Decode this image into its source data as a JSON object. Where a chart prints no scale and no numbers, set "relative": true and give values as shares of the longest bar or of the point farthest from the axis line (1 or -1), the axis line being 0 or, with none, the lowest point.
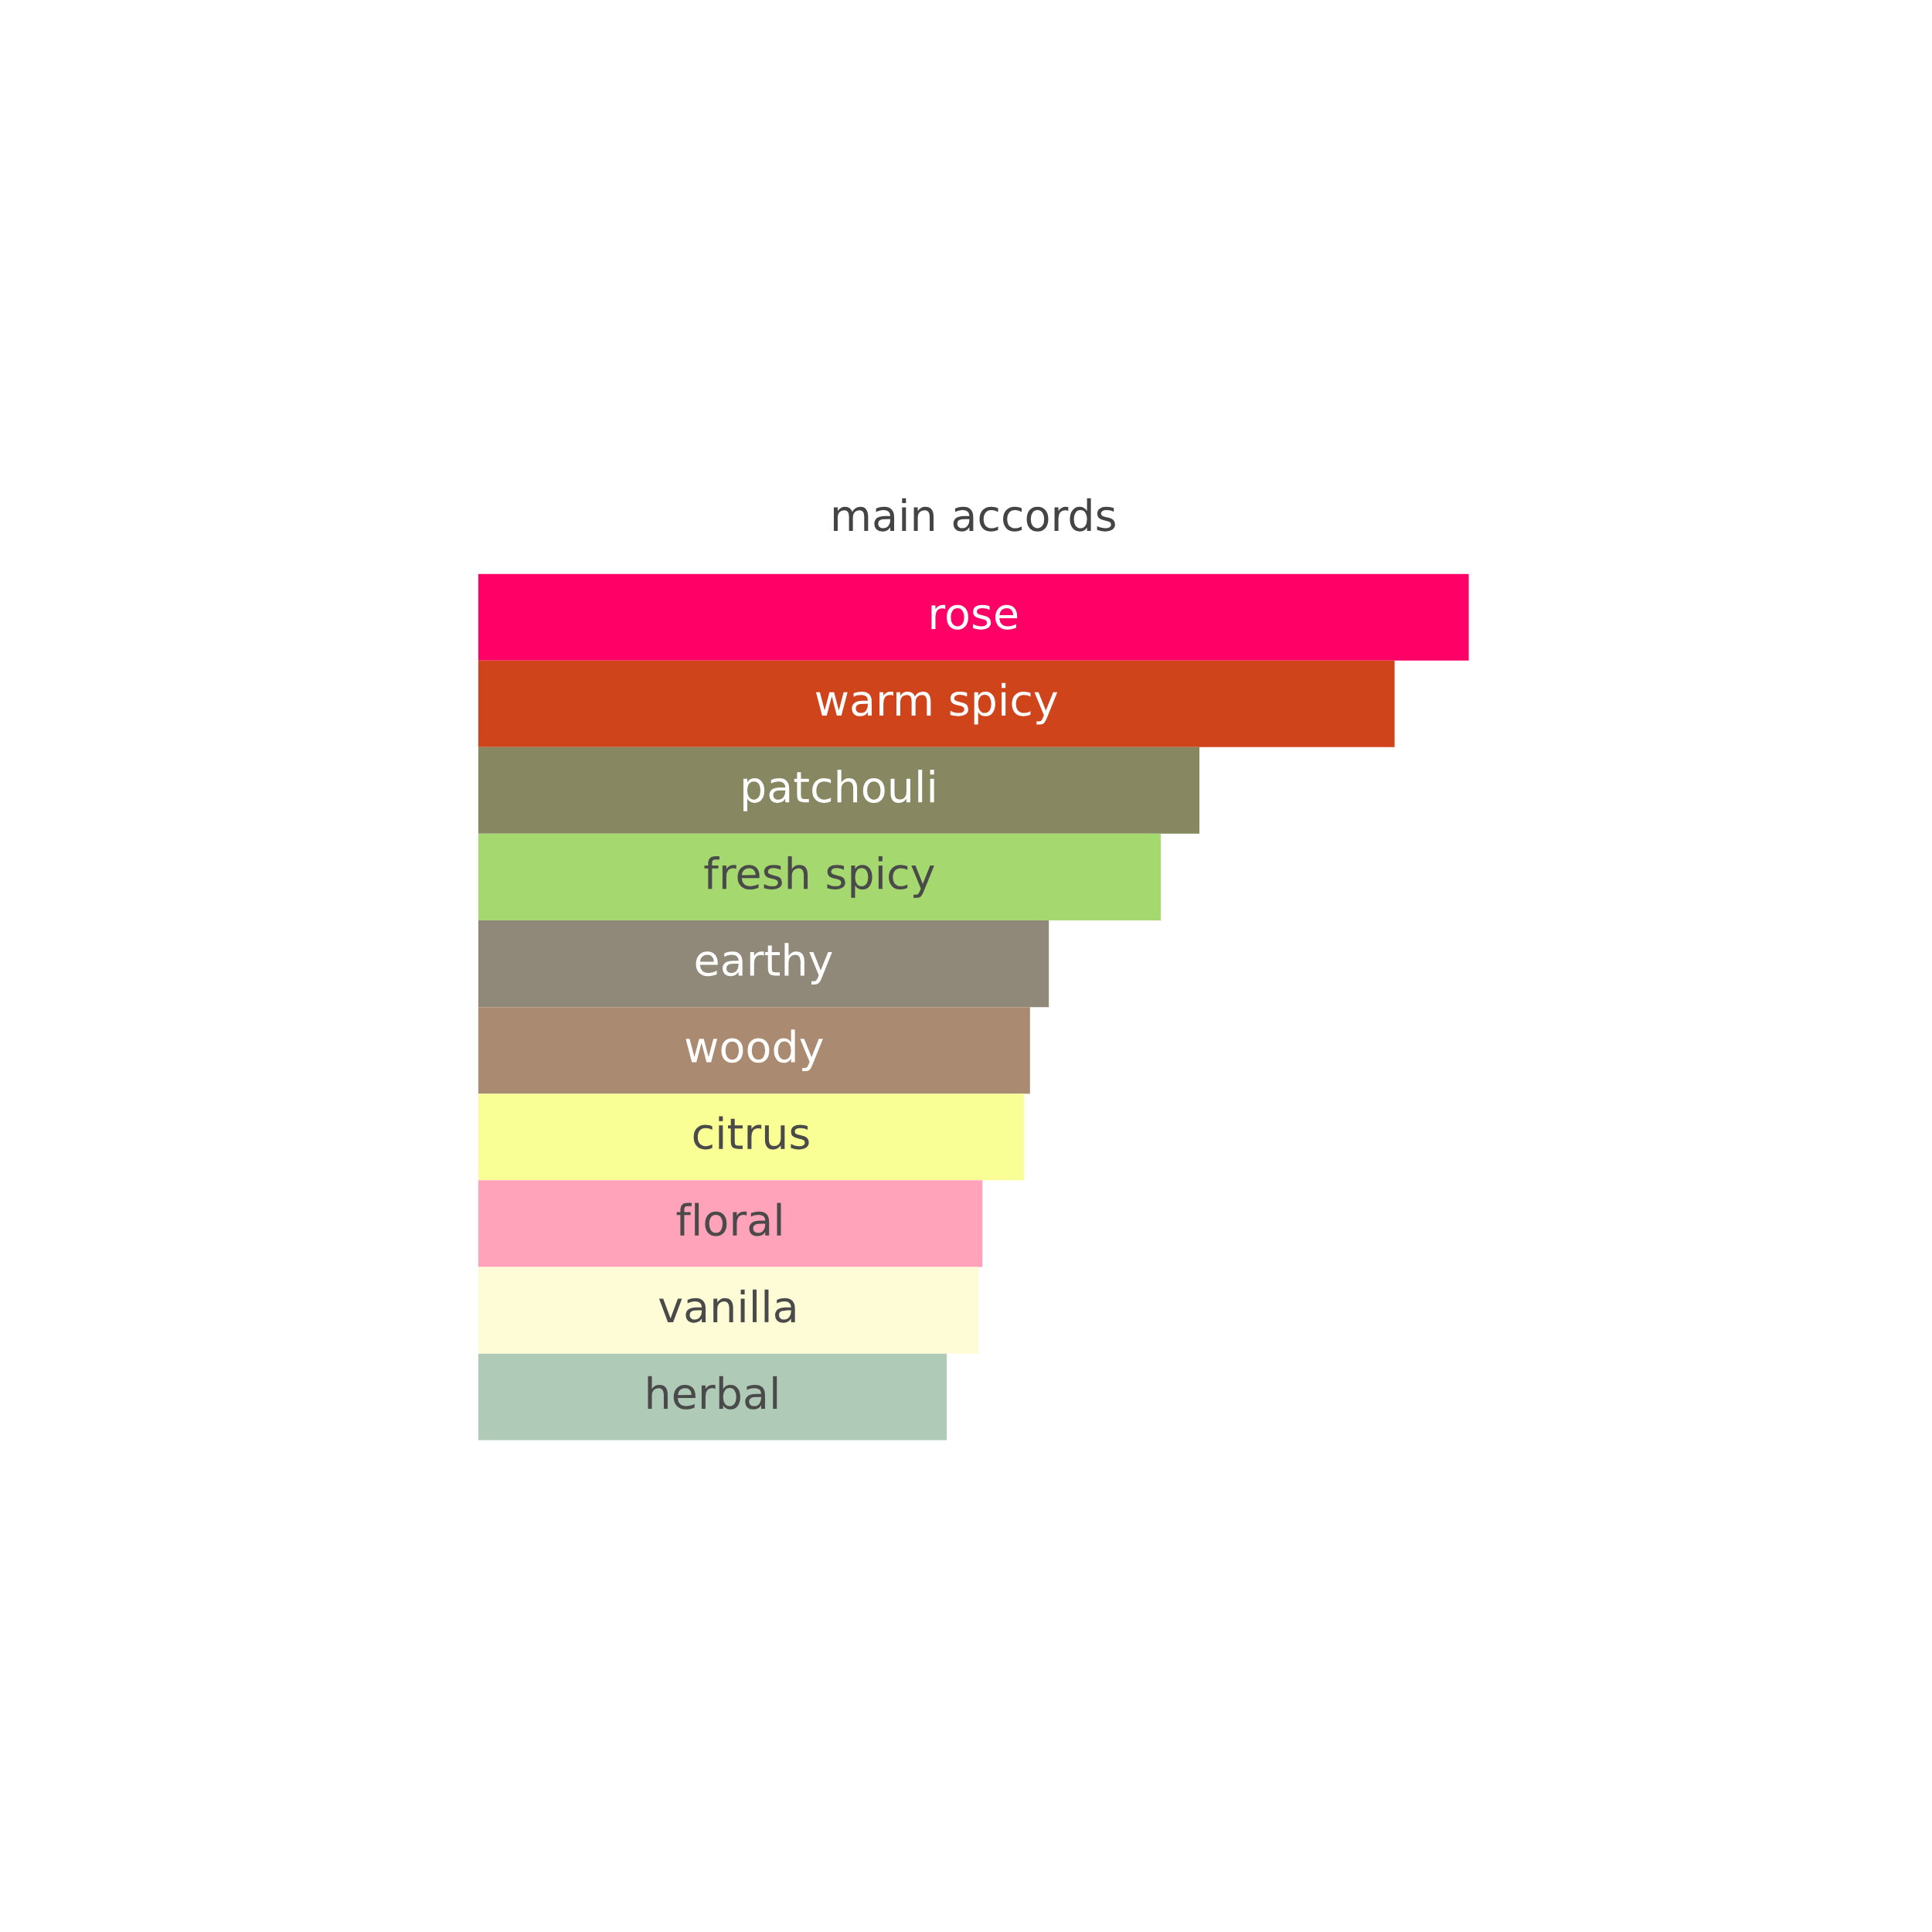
{
  "chart_data": {
    "type": "bar",
    "orientation": "horizontal",
    "relative": true,
    "title": "main accords",
    "categories": [
      "rose",
      "warm spicy",
      "patchouli",
      "fresh spicy",
      "earthy",
      "woody",
      "citrus",
      "floral",
      "vanilla",
      "herbal"
    ],
    "values": [
      1,
      0.925,
      0.728,
      0.689,
      0.576,
      0.557,
      0.551,
      0.509,
      0.505,
      0.473
    ],
    "colors": [
      "#ff0066",
      "#d0441c",
      "#878761",
      "#a5d86e",
      "#908878",
      "#aa8a70",
      "#f9fe95",
      "#fea3ba",
      "#fefcd6",
      "#afcab6"
    ]
  }
}
